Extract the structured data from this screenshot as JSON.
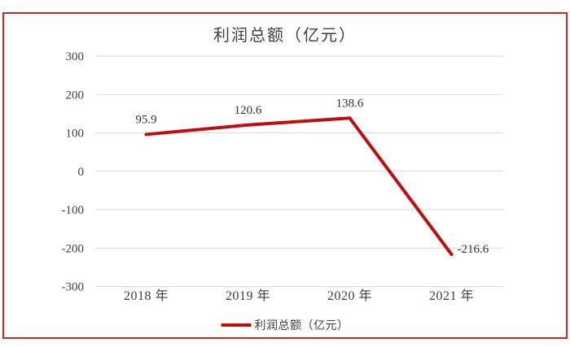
{
  "chart_data": {
    "type": "line",
    "title": "利润总额（亿元）",
    "legend": "利润总额（亿元）",
    "legend_position": "bottom",
    "categories": [
      "2018 年",
      "2019 年",
      "2020 年",
      "2021 年"
    ],
    "values": [
      95.9,
      120.6,
      138.6,
      -216.6
    ],
    "labels": [
      "95.9",
      "120.6",
      "138.6",
      "-216.6"
    ],
    "label_positions": [
      "above",
      "above",
      "above",
      "right"
    ],
    "xlabel": "",
    "ylabel": "",
    "ylim": [
      -300,
      300
    ],
    "ytick_step": 100,
    "grid": "horizontal",
    "colors": {
      "line": "#c00d0d",
      "frame_border": "#c52a2a",
      "gridline": "#d9d9d9",
      "text": "#3f3f3f"
    }
  }
}
